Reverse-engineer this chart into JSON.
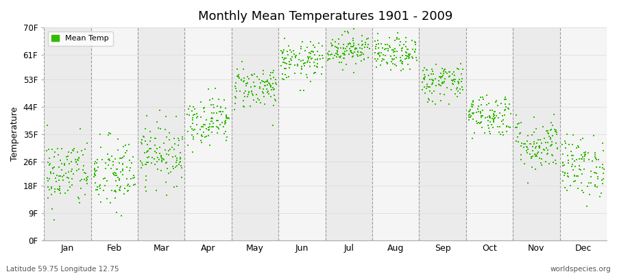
{
  "title": "Monthly Mean Temperatures 1901 - 2009",
  "ylabel": "Temperature",
  "xlabel_labels": [
    "Jan",
    "Feb",
    "Mar",
    "Apr",
    "May",
    "Jun",
    "Jul",
    "Aug",
    "Sep",
    "Oct",
    "Nov",
    "Dec"
  ],
  "ytick_labels": [
    "0F",
    "9F",
    "18F",
    "26F",
    "35F",
    "44F",
    "53F",
    "61F",
    "70F"
  ],
  "ytick_values": [
    0,
    9,
    18,
    26,
    35,
    44,
    53,
    61,
    70
  ],
  "ylim": [
    0,
    70
  ],
  "xlim": [
    0,
    12
  ],
  "dot_color": "#33bb00",
  "background_color": "#ffffff",
  "band_colors": [
    "#ebebeb",
    "#f5f5f5"
  ],
  "vline_color": "#999999",
  "grid_color": "#dddddd",
  "legend_label": "Mean Temp",
  "footer_left": "Latitude 59.75 Longitude 12.75",
  "footer_right": "worldspecies.org",
  "n_years": 109,
  "monthly_mean_celsius": [
    -5.5,
    -5.8,
    -1.8,
    4.2,
    10.2,
    14.8,
    17.2,
    16.2,
    11.2,
    5.2,
    -0.2,
    -4.2
  ],
  "monthly_std_celsius": [
    3.2,
    3.5,
    2.8,
    2.2,
    2.0,
    1.8,
    1.5,
    1.5,
    1.8,
    2.0,
    2.5,
    2.8
  ]
}
